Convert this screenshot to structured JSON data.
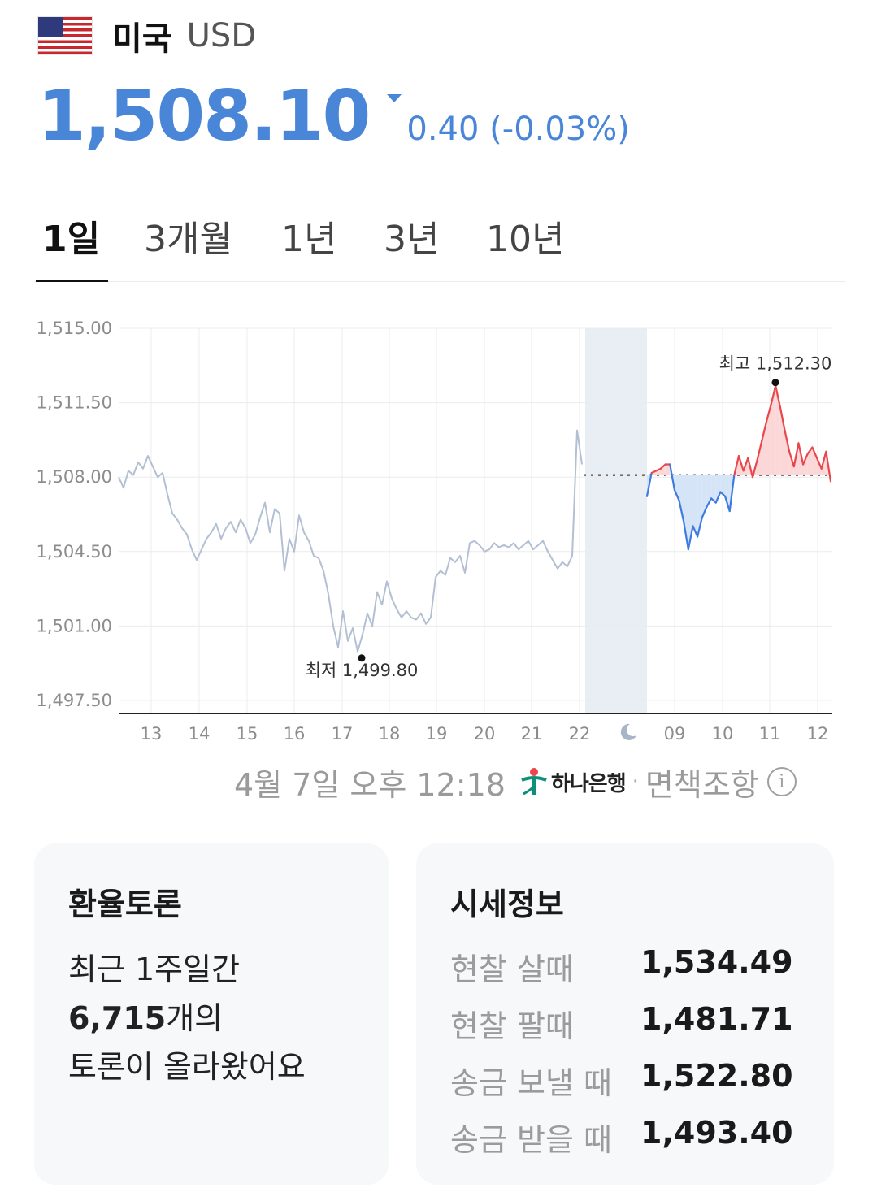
{
  "header": {
    "country": "미국",
    "currency": "USD",
    "flag_icon": "us-flag-icon"
  },
  "quote": {
    "price": "1,508.10",
    "change": "0.40 (-0.03%)",
    "direction": "down"
  },
  "tabs": [
    {
      "label": "1일",
      "active": true
    },
    {
      "label": "3개월",
      "active": false
    },
    {
      "label": "1년",
      "active": false
    },
    {
      "label": "3년",
      "active": false
    },
    {
      "label": "10년",
      "active": false
    }
  ],
  "chart_data": {
    "type": "line",
    "y_ticks": [
      "1,515.00",
      "1,511.50",
      "1,508.00",
      "1,504.50",
      "1,501.00",
      "1,497.50"
    ],
    "ylim": [
      1497.5,
      1515.0
    ],
    "x_ticks": [
      "13",
      "14",
      "15",
      "16",
      "17",
      "18",
      "19",
      "20",
      "21",
      "22",
      "09",
      "10",
      "11",
      "12"
    ],
    "night_icon": "moon-icon",
    "reference_price": 1508.1,
    "low_label": "최저 1,499.80",
    "high_label": "최고 1,512.30",
    "low_value": 1499.8,
    "high_value": 1512.3,
    "colors": {
      "previous": "#b3bfd3",
      "up": "#e8474c",
      "down": "#3e7be0",
      "up_fill": "#fbd7d8",
      "down_fill": "#d6e4f8"
    },
    "series": [
      {
        "x_range": [
          "13",
          "22"
        ],
        "values": [
          1508.0,
          1507.5,
          1508.3,
          1508.1,
          1508.7,
          1508.4,
          1509.0,
          1508.5,
          1508.0,
          1508.2,
          1507.2,
          1506.3,
          1506.0,
          1505.6,
          1505.3,
          1504.6,
          1504.1,
          1504.6,
          1505.1,
          1505.4,
          1505.8,
          1505.1,
          1505.6,
          1505.9,
          1505.4,
          1506.0,
          1505.6,
          1504.9,
          1505.3,
          1506.1,
          1506.8,
          1505.4,
          1506.5,
          1506.3,
          1503.6,
          1505.1,
          1504.5,
          1506.2,
          1505.4,
          1505.0,
          1504.3,
          1504.2,
          1503.6,
          1502.5,
          1501.0,
          1500.0,
          1501.7,
          1500.3,
          1500.9,
          1499.8,
          1500.6,
          1501.6,
          1501.0,
          1502.6,
          1502.0,
          1503.1,
          1502.3,
          1501.8,
          1501.4,
          1501.7,
          1501.4,
          1501.3,
          1501.6,
          1501.1,
          1501.4,
          1503.3,
          1503.6,
          1503.4,
          1504.2,
          1504.0,
          1504.3,
          1503.5,
          1504.9,
          1505.0,
          1504.8,
          1504.5,
          1504.6,
          1504.9,
          1504.7,
          1504.8,
          1504.7,
          1504.9,
          1504.6,
          1504.8,
          1505.0,
          1504.6,
          1504.8,
          1505.0,
          1504.5,
          1504.1,
          1503.7,
          1504.0,
          1503.8,
          1504.3,
          1510.2,
          1508.6
        ]
      },
      {
        "x_range": [
          "09",
          "12"
        ],
        "values": [
          1507.1,
          1508.2,
          1508.3,
          1508.4,
          1508.6,
          1508.6,
          1507.4,
          1506.9,
          1505.9,
          1504.6,
          1505.7,
          1505.2,
          1506.1,
          1506.6,
          1507.0,
          1506.8,
          1507.3,
          1507.1,
          1506.4,
          1508.1,
          1509.0,
          1508.3,
          1508.9,
          1508.0,
          1508.8,
          1509.7,
          1510.6,
          1511.4,
          1512.3,
          1511.3,
          1510.2,
          1509.2,
          1508.5,
          1509.6,
          1508.6,
          1509.1,
          1509.4,
          1508.9,
          1508.4,
          1509.2,
          1507.8
        ]
      }
    ]
  },
  "update": {
    "timestamp": "4월 7일 오후 12:18",
    "bank": "하나은행",
    "separator": "·",
    "disclaimer": "면책조항",
    "info_icon": "info-icon"
  },
  "discussion": {
    "title": "환율토론",
    "line1": "최근 1주일간",
    "count": "6,715",
    "count_suffix": "개의",
    "line3": "토론이 올라왔어요"
  },
  "market_info": {
    "title": "시세정보",
    "rows": [
      {
        "label": "현찰 살때",
        "value": "1,534.49"
      },
      {
        "label": "현찰 팔때",
        "value": "1,481.71"
      },
      {
        "label": "송금 보낼 때",
        "value": "1,522.80"
      },
      {
        "label": "송금 받을 때",
        "value": "1,493.40"
      }
    ]
  }
}
